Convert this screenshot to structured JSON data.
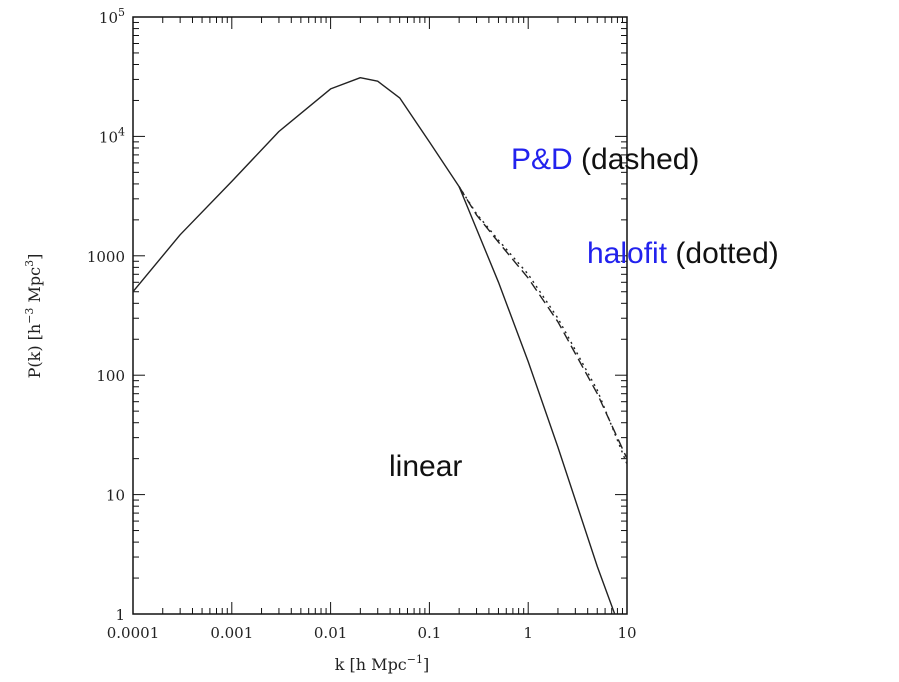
{
  "chart_data": {
    "type": "line",
    "xscale": "log",
    "yscale": "log",
    "xlim": [
      0.0001,
      10
    ],
    "ylim": [
      1,
      100000
    ],
    "xlabel": {
      "main": "k [h Mpc",
      "sup": "−1",
      "end": "]"
    },
    "ylabel": {
      "pre": "P(k) [h",
      "sup1": "−3",
      "mid": " Mpc",
      "sup2": "3",
      "end": "]"
    },
    "xticks": [
      {
        "value": 0.0001,
        "label": "0.0001"
      },
      {
        "value": 0.001,
        "label": "0.001"
      },
      {
        "value": 0.01,
        "label": "0.01"
      },
      {
        "value": 0.1,
        "label": "0.1"
      },
      {
        "value": 1,
        "label": "1"
      },
      {
        "value": 10,
        "label": "10"
      }
    ],
    "yticks": [
      {
        "value": 1,
        "label": "1"
      },
      {
        "value": 10,
        "label": "10"
      },
      {
        "value": 100,
        "label": "100"
      },
      {
        "value": 1000,
        "label": "1000"
      },
      {
        "value": 10000,
        "base": "10",
        "exp": "4"
      },
      {
        "value": 100000,
        "base": "10",
        "exp": "5"
      }
    ],
    "series": [
      {
        "style": "solid",
        "x": [
          0.0001,
          0.0003,
          0.001,
          0.003,
          0.01,
          0.02,
          0.03,
          0.05,
          0.1,
          0.2,
          0.5,
          1,
          2,
          5,
          7.5
        ],
        "y": [
          500,
          1500,
          4200,
          11000,
          25000,
          31000,
          29000,
          21000,
          9000,
          3800,
          600,
          130,
          25,
          2.5,
          1
        ]
      },
      {
        "style": "dashed",
        "x": [
          0.2,
          0.3,
          0.5,
          1,
          2,
          5,
          10
        ],
        "y": [
          3800,
          2200,
          1300,
          650,
          280,
          70,
          20
        ]
      },
      {
        "style": "dotted",
        "x": [
          0.2,
          0.3,
          0.5,
          1,
          2,
          5,
          10
        ],
        "y": [
          3800,
          2250,
          1350,
          700,
          300,
          75,
          18
        ]
      }
    ],
    "annotations": [
      {
        "parts": [
          {
            "text": "P&D",
            "color": "#2222ee"
          },
          {
            "text": " (dashed)",
            "color": "#111111"
          }
        ]
      },
      {
        "parts": [
          {
            "text": "halofit",
            "color": "#2222ee"
          },
          {
            "text": " (dotted)",
            "color": "#111111"
          }
        ]
      },
      {
        "parts": [
          {
            "text": "linear",
            "color": "#111111"
          }
        ]
      }
    ]
  }
}
